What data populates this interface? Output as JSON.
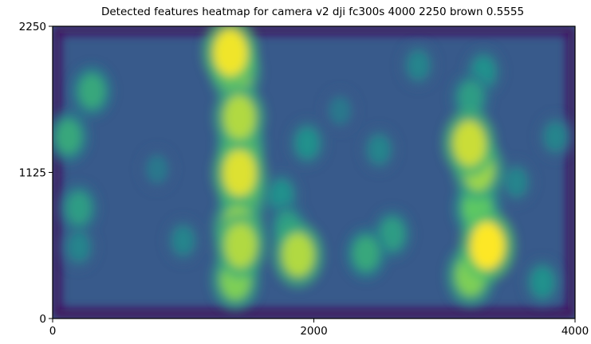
{
  "chart_data": {
    "type": "heatmap",
    "title": "Detected features heatmap for camera v2 dji fc300s 4000 2250 brown 0.5555",
    "xlabel": "",
    "ylabel": "",
    "xlim": [
      0,
      4000
    ],
    "ylim": [
      0,
      2250
    ],
    "x_ticks": [
      "0",
      "2000",
      "4000"
    ],
    "y_ticks": [
      "0",
      "1125",
      "2250"
    ],
    "colormap": "viridis",
    "grid": false,
    "intensity_scale": [
      0,
      1
    ],
    "hotspots": [
      {
        "x": 1360,
        "y": 2050,
        "intensity": 0.98
      },
      {
        "x": 1400,
        "y": 1900,
        "intensity": 0.85
      },
      {
        "x": 1430,
        "y": 1550,
        "intensity": 0.88
      },
      {
        "x": 1440,
        "y": 1320,
        "intensity": 0.8
      },
      {
        "x": 1430,
        "y": 1120,
        "intensity": 0.95
      },
      {
        "x": 1450,
        "y": 950,
        "intensity": 0.8
      },
      {
        "x": 1420,
        "y": 700,
        "intensity": 0.85
      },
      {
        "x": 1440,
        "y": 560,
        "intensity": 0.88
      },
      {
        "x": 1400,
        "y": 300,
        "intensity": 0.8
      },
      {
        "x": 1880,
        "y": 490,
        "intensity": 0.88
      },
      {
        "x": 1800,
        "y": 700,
        "intensity": 0.55
      },
      {
        "x": 1950,
        "y": 1350,
        "intensity": 0.5
      },
      {
        "x": 1750,
        "y": 950,
        "intensity": 0.5
      },
      {
        "x": 3190,
        "y": 1350,
        "intensity": 0.92
      },
      {
        "x": 3260,
        "y": 1150,
        "intensity": 0.85
      },
      {
        "x": 3250,
        "y": 850,
        "intensity": 0.75
      },
      {
        "x": 3330,
        "y": 560,
        "intensity": 1.0
      },
      {
        "x": 3200,
        "y": 330,
        "intensity": 0.8
      },
      {
        "x": 3200,
        "y": 1700,
        "intensity": 0.55
      },
      {
        "x": 3300,
        "y": 1900,
        "intensity": 0.5
      },
      {
        "x": 3550,
        "y": 1050,
        "intensity": 0.45
      },
      {
        "x": 3750,
        "y": 280,
        "intensity": 0.5
      },
      {
        "x": 300,
        "y": 1750,
        "intensity": 0.6
      },
      {
        "x": 120,
        "y": 1400,
        "intensity": 0.6
      },
      {
        "x": 200,
        "y": 850,
        "intensity": 0.55
      },
      {
        "x": 200,
        "y": 550,
        "intensity": 0.45
      },
      {
        "x": 2400,
        "y": 500,
        "intensity": 0.6
      },
      {
        "x": 2600,
        "y": 650,
        "intensity": 0.55
      },
      {
        "x": 2500,
        "y": 1300,
        "intensity": 0.45
      },
      {
        "x": 2200,
        "y": 1600,
        "intensity": 0.4
      },
      {
        "x": 1000,
        "y": 600,
        "intensity": 0.45
      },
      {
        "x": 800,
        "y": 1150,
        "intensity": 0.4
      },
      {
        "x": 2800,
        "y": 1950,
        "intensity": 0.45
      },
      {
        "x": 3850,
        "y": 1400,
        "intensity": 0.45
      }
    ]
  }
}
